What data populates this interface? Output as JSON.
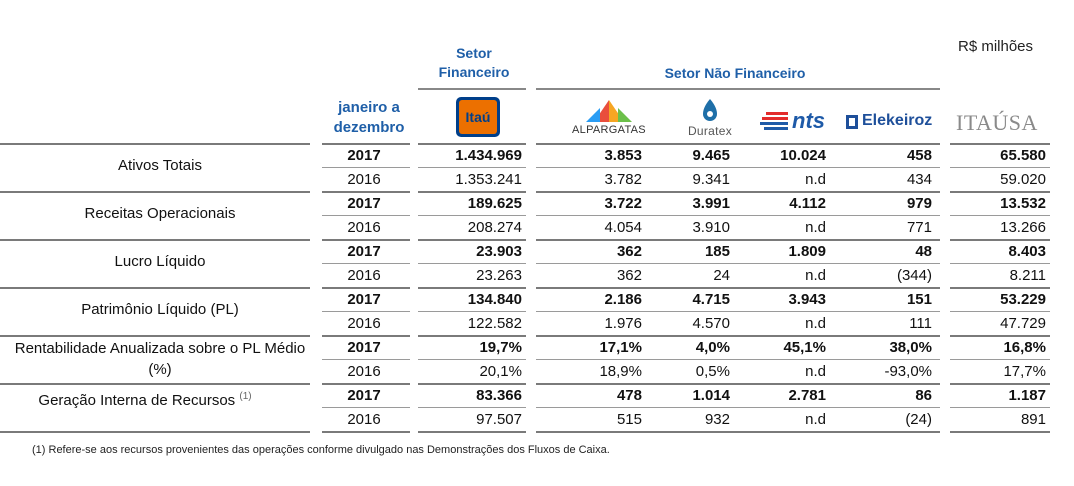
{
  "unit_label": "R$ milhões",
  "header": {
    "setor_financeiro": "Setor Financeiro",
    "setor_nao_financeiro": "Setor Não Financeiro",
    "period": "janeiro a dezembro"
  },
  "companies": {
    "itau": "Itaú",
    "alpargatas": "ALPARGATAS",
    "duratex": "Duratex",
    "nts": "nts",
    "elekeiroz": "Elekeiroz",
    "itausa": "ITAÚSA"
  },
  "colors": {
    "itau_blue": "#003f8a",
    "itau_orange": "#ec7000",
    "header_blue": "#1f5fa8"
  },
  "rows": [
    {
      "label": "Ativos Totais",
      "label_sup": "",
      "y2017": {
        "year": "2017",
        "itau": "1.434.969",
        "alpargatas": "3.853",
        "duratex": "9.465",
        "nts": "10.024",
        "elekeiroz": "458",
        "itausa": "65.580"
      },
      "y2016": {
        "year": "2016",
        "itau": "1.353.241",
        "alpargatas": "3.782",
        "duratex": "9.341",
        "nts": "n.d",
        "elekeiroz": "434",
        "itausa": "59.020"
      }
    },
    {
      "label": "Receitas Operacionais",
      "label_sup": "",
      "y2017": {
        "year": "2017",
        "itau": "189.625",
        "alpargatas": "3.722",
        "duratex": "3.991",
        "nts": "4.112",
        "elekeiroz": "979",
        "itausa": "13.532"
      },
      "y2016": {
        "year": "2016",
        "itau": "208.274",
        "alpargatas": "4.054",
        "duratex": "3.910",
        "nts": "n.d",
        "elekeiroz": "771",
        "itausa": "13.266"
      }
    },
    {
      "label": "Lucro Líquido",
      "label_sup": "",
      "y2017": {
        "year": "2017",
        "itau": "23.903",
        "alpargatas": "362",
        "duratex": "185",
        "nts": "1.809",
        "elekeiroz": "48",
        "itausa": "8.403"
      },
      "y2016": {
        "year": "2016",
        "itau": "23.263",
        "alpargatas": "362",
        "duratex": "24",
        "nts": "n.d",
        "elekeiroz": "(344)",
        "itausa": "8.211"
      }
    },
    {
      "label": "Patrimônio Líquido (PL)",
      "label_sup": "",
      "y2017": {
        "year": "2017",
        "itau": "134.840",
        "alpargatas": "2.186",
        "duratex": "4.715",
        "nts": "3.943",
        "elekeiroz": "151",
        "itausa": "53.229"
      },
      "y2016": {
        "year": "2016",
        "itau": "122.582",
        "alpargatas": "1.976",
        "duratex": "4.570",
        "nts": "n.d",
        "elekeiroz": "111",
        "itausa": "47.729"
      }
    },
    {
      "label": "Rentabilidade Anualizada sobre o PL Médio (%)",
      "label_sup": "",
      "y2017": {
        "year": "2017",
        "itau": "19,7%",
        "alpargatas": "17,1%",
        "duratex": "4,0%",
        "nts": "45,1%",
        "elekeiroz": "38,0%",
        "itausa": "16,8%"
      },
      "y2016": {
        "year": "2016",
        "itau": "20,1%",
        "alpargatas": "18,9%",
        "duratex": "0,5%",
        "nts": "n.d",
        "elekeiroz": "-93,0%",
        "itausa": "17,7%"
      }
    },
    {
      "label": "Geração Interna de Recursos",
      "label_sup": "(1)",
      "y2017": {
        "year": "2017",
        "itau": "83.366",
        "alpargatas": "478",
        "duratex": "1.014",
        "nts": "2.781",
        "elekeiroz": "86",
        "itausa": "1.187"
      },
      "y2016": {
        "year": "2016",
        "itau": "97.507",
        "alpargatas": "515",
        "duratex": "932",
        "nts": "n.d",
        "elekeiroz": "(24)",
        "itausa": "891"
      }
    }
  ],
  "footnote": "(1) Refere-se aos recursos provenientes das operações conforme divulgado nas Demonstrações dos Fluxos de Caixa."
}
